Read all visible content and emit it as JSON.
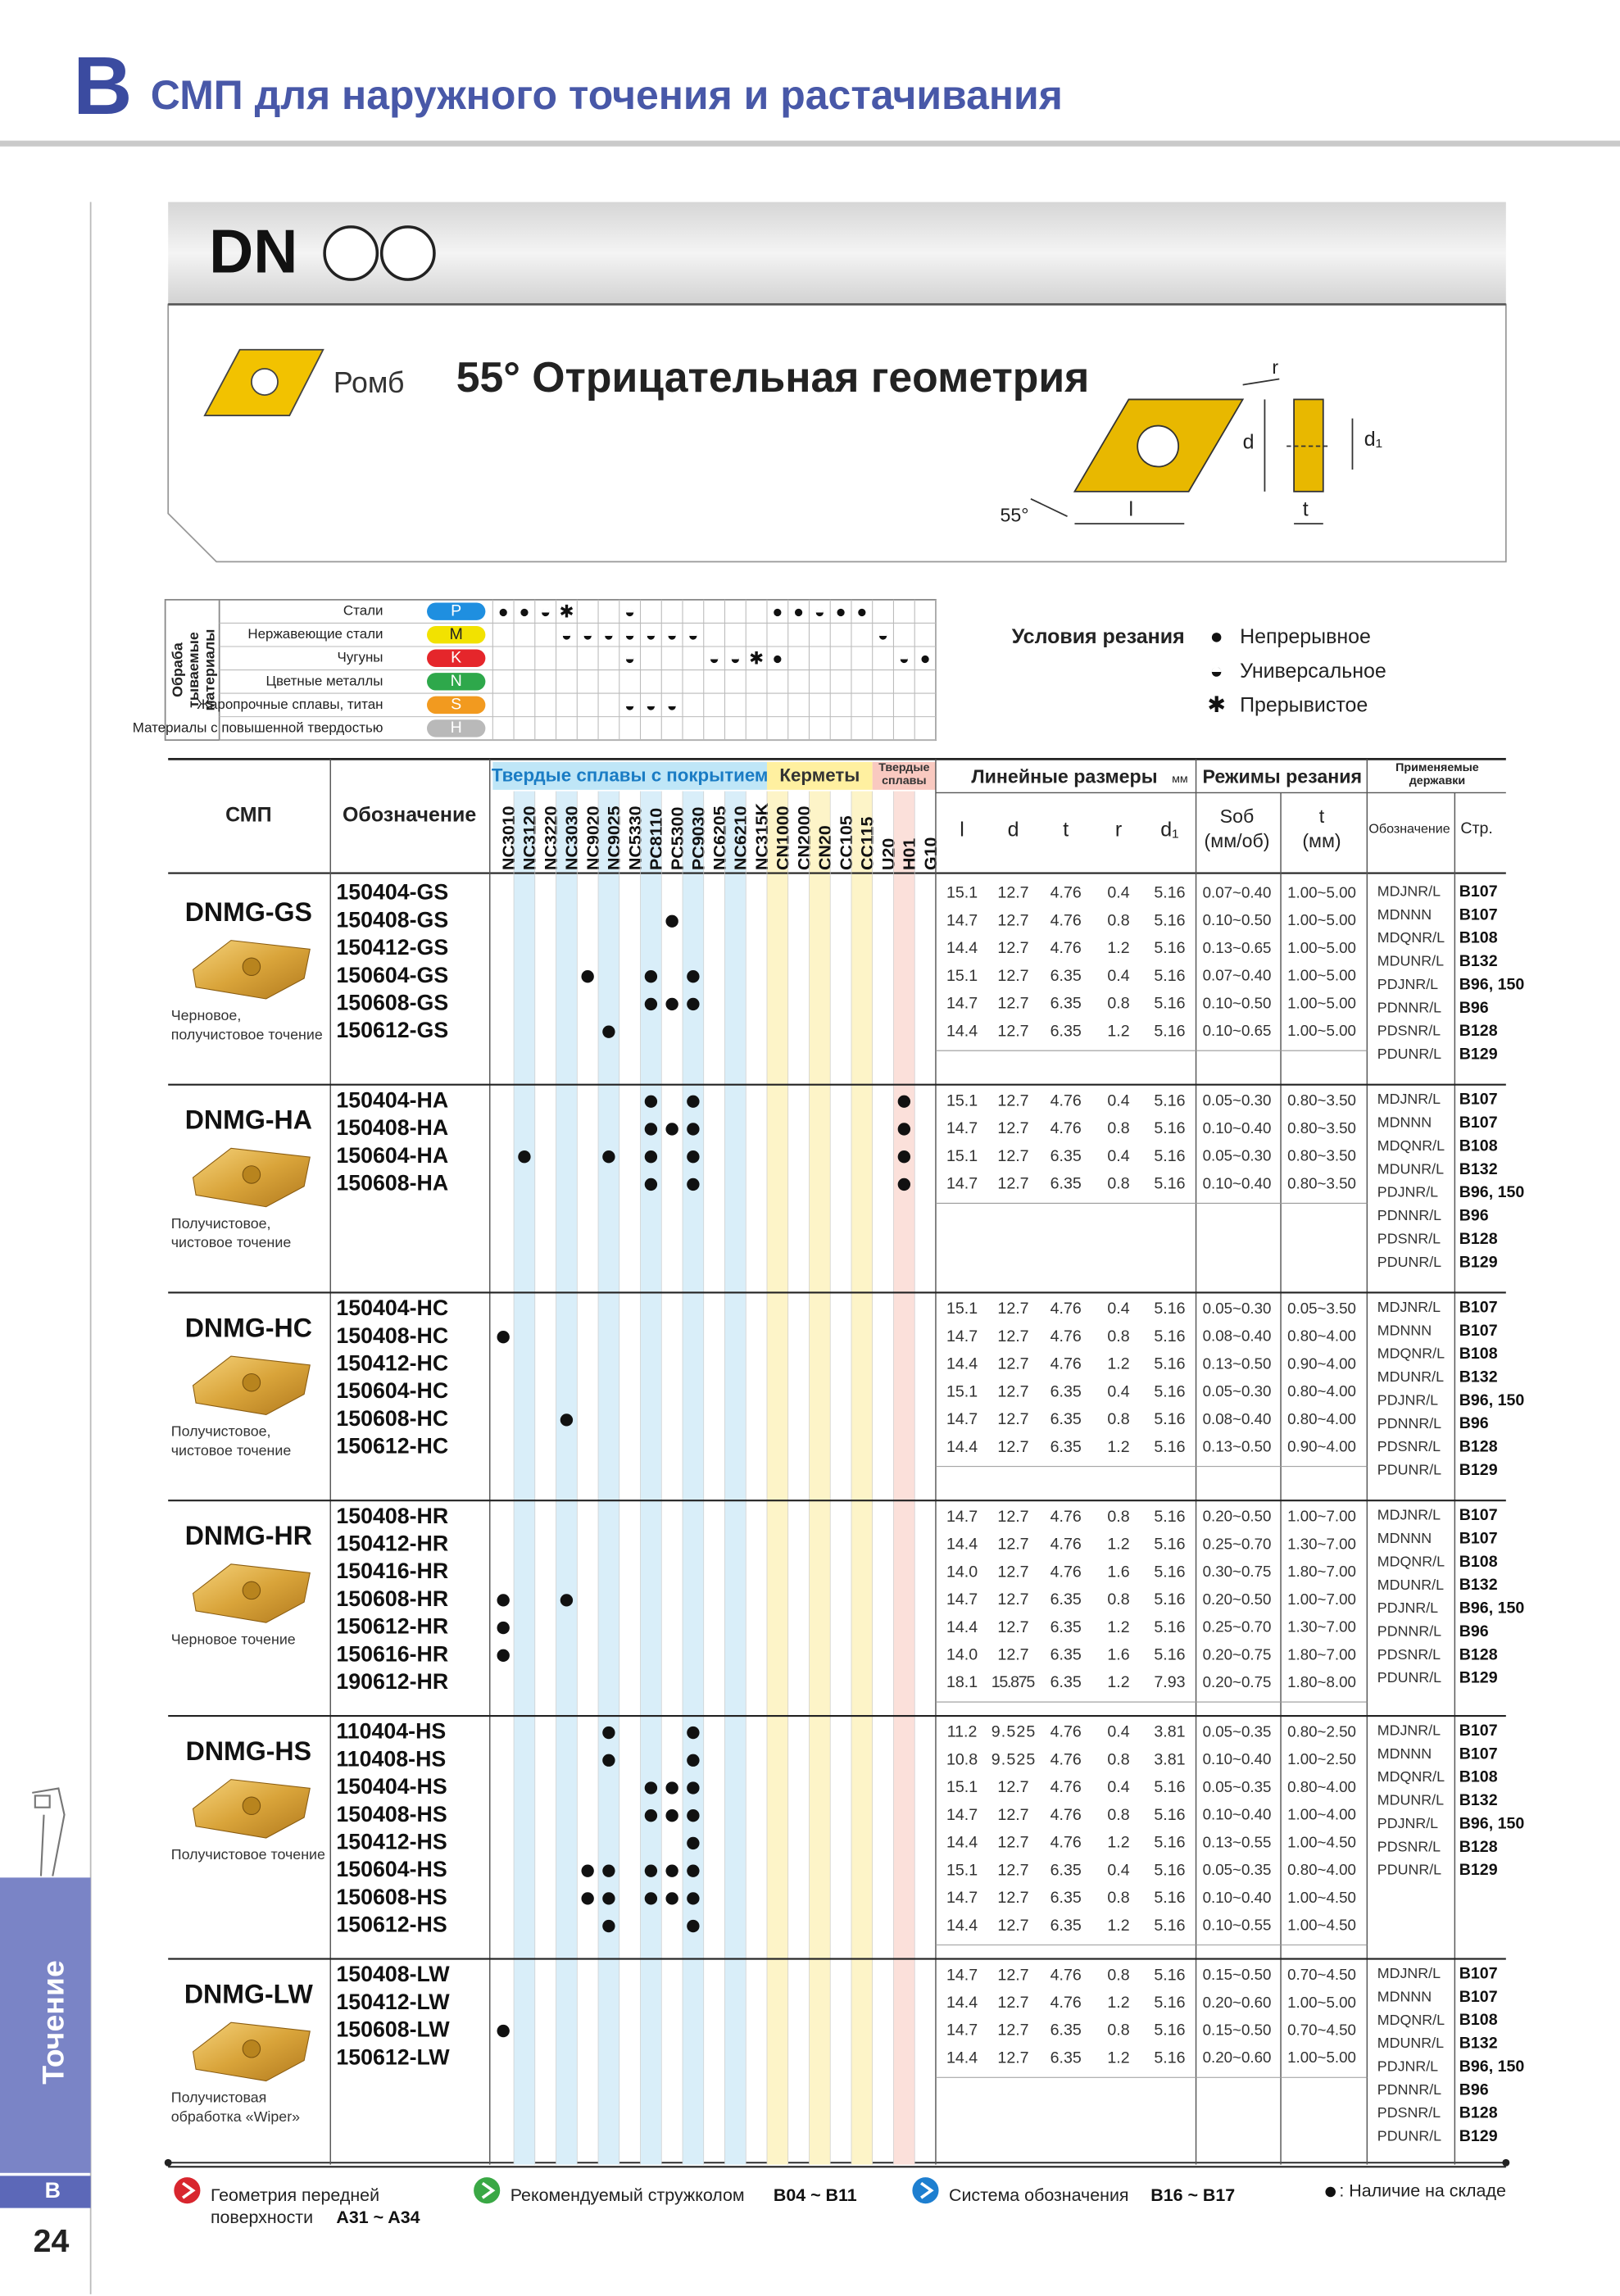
{
  "header": {
    "section": "B",
    "title": "СМП для наружного точения и растачивания"
  },
  "sidebar": {
    "label": "Точение",
    "section": "B",
    "page": "24"
  },
  "product": {
    "code": "DN",
    "shape": "Ромб",
    "title": "55° Отрицательная геометрия",
    "dims": {
      "r": "r",
      "d": "d",
      "d1": "d₁",
      "l": "l",
      "t": "t",
      "angle": "55°"
    }
  },
  "materials": {
    "heading": [
      "Обраба",
      "тываемые",
      "материалы"
    ],
    "rows": [
      {
        "name": "Стали",
        "code": "P",
        "color": "#1f8fe0",
        "marks": {
          "NC3010": "●",
          "NC3120": "●",
          "NC3220": "◒",
          "NC3030": "✱",
          "NC5330": "◒",
          "CN1000": "●",
          "CN2000": "●",
          "CN20": "◒",
          "CC105": "●",
          "CC115": "●"
        }
      },
      {
        "name": "Нержавеющие стали",
        "code": "M",
        "color": "#f2e200",
        "marks": {
          "NC3030": "◒",
          "NC9020": "◒",
          "NC9025": "◒",
          "NC5330": "◒",
          "PC8110": "◒",
          "PC5300": "◒",
          "PC9030": "◒",
          "U20": "◒"
        }
      },
      {
        "name": "Чугуны",
        "code": "K",
        "color": "#e5262b",
        "marks": {
          "NC5330": "◒",
          "NC6205": "◒",
          "NC6210": "◒",
          "NC315K": "✱",
          "CN1000": "●",
          "H01": "◒",
          "G10": "●"
        }
      },
      {
        "name": "Цветные металлы",
        "code": "N",
        "color": "#2ea84b",
        "marks": {}
      },
      {
        "name": "Жаропрочные сплавы, титан",
        "code": "S",
        "color": "#f29a1f",
        "marks": {
          "NC5330": "◒",
          "PC8110": "◒",
          "PC5300": "◒"
        }
      },
      {
        "name": "Материалы с повышенной твердостью",
        "code": "H",
        "color": "#b9b9b9",
        "marks": {}
      }
    ]
  },
  "conditions": {
    "title": "Условия резания",
    "items": [
      {
        "symbol": "●",
        "label": "Непрерывное"
      },
      {
        "symbol": "◒",
        "label": "Универсальное"
      },
      {
        "symbol": "✱",
        "label": "Прерывистое"
      }
    ]
  },
  "table": {
    "insert": "СМП",
    "designation": "Обозначение",
    "grade_groups": [
      {
        "label": [
          "Твердые сплавы с покрытием"
        ],
        "color": "#bfe6f7",
        "text_color": "#1a7cc4",
        "stripe": "#d9eef9",
        "grades": [
          "NC3010",
          "NC3120",
          "NC3220",
          "NC3030",
          "NC9020",
          "NC9025",
          "NC5330",
          "PC8110",
          "PC5300",
          "PC9030",
          "NC6205",
          "NC6210",
          "NC315K"
        ]
      },
      {
        "label": [
          "Керметы"
        ],
        "color": "#fff0a0",
        "text_color": "#333333",
        "stripe": "#fdf4c8",
        "grades": [
          "CN1000",
          "CN2000",
          "CN20",
          "CC105",
          "CC115"
        ]
      },
      {
        "label": [
          "Твердые",
          "сплавы"
        ],
        "color": "#f9c9c0",
        "text_color": "#333333",
        "stripe": "#fbe0da",
        "grades": [
          "U20",
          "H01",
          "G10"
        ]
      }
    ],
    "dims": {
      "title": "Линейные размеры",
      "unit": "мм",
      "columns": [
        "l",
        "d",
        "t",
        "r",
        "d₁"
      ]
    },
    "cutting": {
      "title": "Режимы резания",
      "feed": [
        "Sоб",
        "(мм/об)"
      ],
      "depth": [
        "t",
        "(мм)"
      ]
    },
    "holders": {
      "title": [
        "Применяемые",
        "державки"
      ],
      "name": "Обозначение",
      "page": "Стр."
    }
  },
  "groups": [
    {
      "name": "DNMG-GS",
      "description": [
        "Черновое,",
        "получистовое точение"
      ],
      "rows": [
        {
          "code": "150404-GS",
          "stock": [],
          "dims": [
            "15.1",
            "12.7",
            "4.76",
            "0.4",
            "5.16"
          ],
          "feed": "0.07~0.40",
          "depth": "1.00~5.00"
        },
        {
          "code": "150408-GS",
          "stock": [
            "PC5300"
          ],
          "dims": [
            "14.7",
            "12.7",
            "4.76",
            "0.8",
            "5.16"
          ],
          "feed": "0.10~0.50",
          "depth": "1.00~5.00"
        },
        {
          "code": "150412-GS",
          "stock": [],
          "dims": [
            "14.4",
            "12.7",
            "4.76",
            "1.2",
            "5.16"
          ],
          "feed": "0.13~0.65",
          "depth": "1.00~5.00"
        },
        {
          "code": "150604-GS",
          "stock": [
            "NC9020",
            "PC8110",
            "PC9030"
          ],
          "dims": [
            "15.1",
            "12.7",
            "6.35",
            "0.4",
            "5.16"
          ],
          "feed": "0.07~0.40",
          "depth": "1.00~5.00"
        },
        {
          "code": "150608-GS",
          "stock": [
            "PC8110",
            "PC5300",
            "PC9030"
          ],
          "dims": [
            "14.7",
            "12.7",
            "6.35",
            "0.8",
            "5.16"
          ],
          "feed": "0.10~0.50",
          "depth": "1.00~5.00"
        },
        {
          "code": "150612-GS",
          "stock": [
            "NC9025"
          ],
          "dims": [
            "14.4",
            "12.7",
            "6.35",
            "1.2",
            "5.16"
          ],
          "feed": "0.10~0.65",
          "depth": "1.00~5.00"
        }
      ],
      "holders": [
        {
          "name": "MDJNR/L",
          "page": "B107"
        },
        {
          "name": "MDNNN",
          "page": "B107"
        },
        {
          "name": "MDQNR/L",
          "page": "B108"
        },
        {
          "name": "MDUNR/L",
          "page": "B132"
        },
        {
          "name": "PDJNR/L",
          "page": "B96, 150"
        },
        {
          "name": "PDNNR/L",
          "page": "B96"
        },
        {
          "name": "PDSNR/L",
          "page": "B128"
        },
        {
          "name": "PDUNR/L",
          "page": "B129"
        }
      ]
    },
    {
      "name": "DNMG-HA",
      "description": [
        "Получистовое,",
        "чистовое точение"
      ],
      "rows": [
        {
          "code": "150404-HA",
          "stock": [
            "PC8110",
            "PC9030",
            "H01"
          ],
          "dims": [
            "15.1",
            "12.7",
            "4.76",
            "0.4",
            "5.16"
          ],
          "feed": "0.05~0.30",
          "depth": "0.80~3.50"
        },
        {
          "code": "150408-HA",
          "stock": [
            "PC8110",
            "PC5300",
            "PC9030",
            "H01"
          ],
          "dims": [
            "14.7",
            "12.7",
            "4.76",
            "0.8",
            "5.16"
          ],
          "feed": "0.10~0.40",
          "depth": "0.80~3.50"
        },
        {
          "code": "150604-HA",
          "stock": [
            "NC3120",
            "NC9025",
            "PC8110",
            "PC9030",
            "H01"
          ],
          "dims": [
            "15.1",
            "12.7",
            "6.35",
            "0.4",
            "5.16"
          ],
          "feed": "0.05~0.30",
          "depth": "0.80~3.50"
        },
        {
          "code": "150608-HA",
          "stock": [
            "PC8110",
            "PC9030",
            "H01"
          ],
          "dims": [
            "14.7",
            "12.7",
            "6.35",
            "0.8",
            "5.16"
          ],
          "feed": "0.10~0.40",
          "depth": "0.80~3.50"
        }
      ],
      "holders": [
        {
          "name": "MDJNR/L",
          "page": "B107"
        },
        {
          "name": "MDNNN",
          "page": "B107"
        },
        {
          "name": "MDQNR/L",
          "page": "B108"
        },
        {
          "name": "MDUNR/L",
          "page": "B132"
        },
        {
          "name": "PDJNR/L",
          "page": "B96, 150"
        },
        {
          "name": "PDNNR/L",
          "page": "B96"
        },
        {
          "name": "PDSNR/L",
          "page": "B128"
        },
        {
          "name": "PDUNR/L",
          "page": "B129"
        }
      ]
    },
    {
      "name": "DNMG-HC",
      "description": [
        "Получистовое,",
        "чистовое точение"
      ],
      "rows": [
        {
          "code": "150404-HC",
          "stock": [],
          "dims": [
            "15.1",
            "12.7",
            "4.76",
            "0.4",
            "5.16"
          ],
          "feed": "0.05~0.30",
          "depth": "0.05~3.50"
        },
        {
          "code": "150408-HC",
          "stock": [
            "NC3010"
          ],
          "dims": [
            "14.7",
            "12.7",
            "4.76",
            "0.8",
            "5.16"
          ],
          "feed": "0.08~0.40",
          "depth": "0.80~4.00"
        },
        {
          "code": "150412-HC",
          "stock": [],
          "dims": [
            "14.4",
            "12.7",
            "4.76",
            "1.2",
            "5.16"
          ],
          "feed": "0.13~0.50",
          "depth": "0.90~4.00"
        },
        {
          "code": "150604-HC",
          "stock": [],
          "dims": [
            "15.1",
            "12.7",
            "6.35",
            "0.4",
            "5.16"
          ],
          "feed": "0.05~0.30",
          "depth": "0.80~4.00"
        },
        {
          "code": "150608-HC",
          "stock": [
            "NC3030"
          ],
          "dims": [
            "14.7",
            "12.7",
            "6.35",
            "0.8",
            "5.16"
          ],
          "feed": "0.08~0.40",
          "depth": "0.80~4.00"
        },
        {
          "code": "150612-HC",
          "stock": [],
          "dims": [
            "14.4",
            "12.7",
            "6.35",
            "1.2",
            "5.16"
          ],
          "feed": "0.13~0.50",
          "depth": "0.90~4.00"
        }
      ],
      "holders": [
        {
          "name": "MDJNR/L",
          "page": "B107"
        },
        {
          "name": "MDNNN",
          "page": "B107"
        },
        {
          "name": "MDQNR/L",
          "page": "B108"
        },
        {
          "name": "MDUNR/L",
          "page": "B132"
        },
        {
          "name": "PDJNR/L",
          "page": "B96, 150"
        },
        {
          "name": "PDNNR/L",
          "page": "B96"
        },
        {
          "name": "PDSNR/L",
          "page": "B128"
        },
        {
          "name": "PDUNR/L",
          "page": "B129"
        }
      ]
    },
    {
      "name": "DNMG-HR",
      "description": [
        "Черновое точение"
      ],
      "rows": [
        {
          "code": "150408-HR",
          "stock": [],
          "dims": [
            "14.7",
            "12.7",
            "4.76",
            "0.8",
            "5.16"
          ],
          "feed": "0.20~0.50",
          "depth": "1.00~7.00"
        },
        {
          "code": "150412-HR",
          "stock": [],
          "dims": [
            "14.4",
            "12.7",
            "4.76",
            "1.2",
            "5.16"
          ],
          "feed": "0.25~0.70",
          "depth": "1.30~7.00"
        },
        {
          "code": "150416-HR",
          "stock": [],
          "dims": [
            "14.0",
            "12.7",
            "4.76",
            "1.6",
            "5.16"
          ],
          "feed": "0.30~0.75",
          "depth": "1.80~7.00"
        },
        {
          "code": "150608-HR",
          "stock": [
            "NC3010",
            "NC3030"
          ],
          "dims": [
            "14.7",
            "12.7",
            "6.35",
            "0.8",
            "5.16"
          ],
          "feed": "0.20~0.50",
          "depth": "1.00~7.00"
        },
        {
          "code": "150612-HR",
          "stock": [
            "NC3010"
          ],
          "dims": [
            "14.4",
            "12.7",
            "6.35",
            "1.2",
            "5.16"
          ],
          "feed": "0.25~0.70",
          "depth": "1.30~7.00"
        },
        {
          "code": "150616-HR",
          "stock": [
            "NC3010"
          ],
          "dims": [
            "14.0",
            "12.7",
            "6.35",
            "1.6",
            "5.16"
          ],
          "feed": "0.20~0.75",
          "depth": "1.80~7.00"
        },
        {
          "code": "190612-HR",
          "stock": [],
          "dims": [
            "18.1",
            "15.875",
            "6.35",
            "1.2",
            "7.93"
          ],
          "feed": "0.20~0.75",
          "depth": "1.80~8.00"
        }
      ],
      "holders": [
        {
          "name": "MDJNR/L",
          "page": "B107"
        },
        {
          "name": "MDNNN",
          "page": "B107"
        },
        {
          "name": "MDQNR/L",
          "page": "B108"
        },
        {
          "name": "MDUNR/L",
          "page": "B132"
        },
        {
          "name": "PDJNR/L",
          "page": "B96, 150"
        },
        {
          "name": "PDNNR/L",
          "page": "B96"
        },
        {
          "name": "PDSNR/L",
          "page": "B128"
        },
        {
          "name": "PDUNR/L",
          "page": "B129"
        }
      ]
    },
    {
      "name": "DNMG-HS",
      "description": [
        "Получистовое точение"
      ],
      "rows": [
        {
          "code": "110404-HS",
          "stock": [
            "NC9025",
            "PC9030"
          ],
          "dims": [
            "11.2",
            "9.525",
            "4.76",
            "0.4",
            "3.81"
          ],
          "feed": "0.05~0.35",
          "depth": "0.80~2.50"
        },
        {
          "code": "110408-HS",
          "stock": [
            "NC9025",
            "PC9030"
          ],
          "dims": [
            "10.8",
            "9.525",
            "4.76",
            "0.8",
            "3.81"
          ],
          "feed": "0.10~0.40",
          "depth": "1.00~2.50"
        },
        {
          "code": "150404-HS",
          "stock": [
            "PC8110",
            "PC5300",
            "PC9030"
          ],
          "dims": [
            "15.1",
            "12.7",
            "4.76",
            "0.4",
            "5.16"
          ],
          "feed": "0.05~0.35",
          "depth": "0.80~4.00"
        },
        {
          "code": "150408-HS",
          "stock": [
            "PC8110",
            "PC5300",
            "PC9030"
          ],
          "dims": [
            "14.7",
            "12.7",
            "4.76",
            "0.8",
            "5.16"
          ],
          "feed": "0.10~0.40",
          "depth": "1.00~4.00"
        },
        {
          "code": "150412-HS",
          "stock": [
            "PC9030"
          ],
          "dims": [
            "14.4",
            "12.7",
            "4.76",
            "1.2",
            "5.16"
          ],
          "feed": "0.13~0.55",
          "depth": "1.00~4.50"
        },
        {
          "code": "150604-HS",
          "stock": [
            "NC9020",
            "NC9025",
            "PC8110",
            "PC5300",
            "PC9030"
          ],
          "dims": [
            "15.1",
            "12.7",
            "6.35",
            "0.4",
            "5.16"
          ],
          "feed": "0.05~0.35",
          "depth": "0.80~4.00"
        },
        {
          "code": "150608-HS",
          "stock": [
            "NC9020",
            "NC9025",
            "PC8110",
            "PC5300",
            "PC9030"
          ],
          "dims": [
            "14.7",
            "12.7",
            "6.35",
            "0.8",
            "5.16"
          ],
          "feed": "0.10~0.40",
          "depth": "1.00~4.50"
        },
        {
          "code": "150612-HS",
          "stock": [
            "NC9025",
            "PC9030"
          ],
          "dims": [
            "14.4",
            "12.7",
            "6.35",
            "1.2",
            "5.16"
          ],
          "feed": "0.10~0.55",
          "depth": "1.00~4.50"
        }
      ],
      "holders": [
        {
          "name": "MDJNR/L",
          "page": "B107"
        },
        {
          "name": "MDNNN",
          "page": "B107"
        },
        {
          "name": "MDQNR/L",
          "page": "B108"
        },
        {
          "name": "MDUNR/L",
          "page": "B132"
        },
        {
          "name": "PDJNR/L",
          "page": "B96, 150"
        },
        {
          "name": "PDSNR/L",
          "page": "B128"
        },
        {
          "name": "PDUNR/L",
          "page": "B129"
        }
      ]
    },
    {
      "name": "DNMG-LW",
      "description": [
        "Получистовая",
        "обработка «Wiper»"
      ],
      "rows": [
        {
          "code": "150408-LW",
          "stock": [],
          "dims": [
            "14.7",
            "12.7",
            "4.76",
            "0.8",
            "5.16"
          ],
          "feed": "0.15~0.50",
          "depth": "0.70~4.50"
        },
        {
          "code": "150412-LW",
          "stock": [],
          "dims": [
            "14.4",
            "12.7",
            "4.76",
            "1.2",
            "5.16"
          ],
          "feed": "0.20~0.60",
          "depth": "1.00~5.00"
        },
        {
          "code": "150608-LW",
          "stock": [
            "NC3010"
          ],
          "dims": [
            "14.7",
            "12.7",
            "6.35",
            "0.8",
            "5.16"
          ],
          "feed": "0.15~0.50",
          "depth": "0.70~4.50"
        },
        {
          "code": "150612-LW",
          "stock": [],
          "dims": [
            "14.4",
            "12.7",
            "6.35",
            "1.2",
            "5.16"
          ],
          "feed": "0.20~0.60",
          "depth": "1.00~5.00"
        }
      ],
      "holders": [
        {
          "name": "MDJNR/L",
          "page": "B107"
        },
        {
          "name": "MDNNN",
          "page": "B107"
        },
        {
          "name": "MDQNR/L",
          "page": "B108"
        },
        {
          "name": "MDUNR/L",
          "page": "B132"
        },
        {
          "name": "PDJNR/L",
          "page": "B96, 150"
        },
        {
          "name": "PDNNR/L",
          "page": "B96"
        },
        {
          "name": "PDSNR/L",
          "page": "B128"
        },
        {
          "name": "PDUNR/L",
          "page": "B129"
        }
      ]
    }
  ],
  "footer": {
    "links": [
      {
        "text": [
          "Геометрия передней",
          "поверхности"
        ],
        "ref": "A31 ~ A34",
        "color": "#d8262e"
      },
      {
        "text": [
          "Рекомендуемый стружколом"
        ],
        "ref": "B04 ~ B11",
        "color": "#3aa845"
      },
      {
        "text": [
          "Система обозначения"
        ],
        "ref": "B16 ~ B17",
        "color": "#1e7fd0"
      }
    ],
    "stock_note": ": Наличие на складе"
  }
}
